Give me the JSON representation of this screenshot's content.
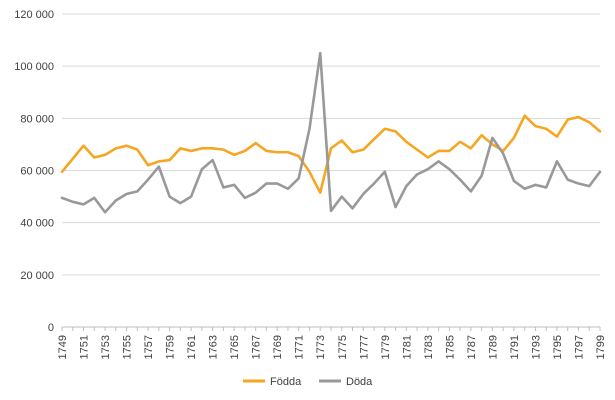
{
  "chart_data": {
    "type": "line",
    "title": "",
    "xlabel": "",
    "ylabel": "",
    "ylim": [
      0,
      120000
    ],
    "yticks": [
      0,
      20000,
      40000,
      60000,
      80000,
      100000,
      120000
    ],
    "ytick_labels": [
      "0",
      "20 000",
      "40 000",
      "60 000",
      "80 000",
      "100 000",
      "120 000"
    ],
    "grid": "horizontal",
    "legend_position": "bottom",
    "x": [
      1749,
      1750,
      1751,
      1752,
      1753,
      1754,
      1755,
      1756,
      1757,
      1758,
      1759,
      1760,
      1761,
      1762,
      1763,
      1764,
      1765,
      1766,
      1767,
      1768,
      1769,
      1770,
      1771,
      1772,
      1773,
      1774,
      1775,
      1776,
      1777,
      1778,
      1779,
      1780,
      1781,
      1782,
      1783,
      1784,
      1785,
      1786,
      1787,
      1788,
      1789,
      1790,
      1791,
      1792,
      1793,
      1794,
      1795,
      1796,
      1797,
      1798,
      1799
    ],
    "xtick_labels": [
      "1749",
      "1751",
      "1753",
      "1755",
      "1757",
      "1759",
      "1761",
      "1763",
      "1765",
      "1767",
      "1769",
      "1771",
      "1773",
      "1775",
      "1777",
      "1779",
      "1781",
      "1783",
      "1785",
      "1787",
      "1789",
      "1791",
      "1793",
      "1795",
      "1797",
      "1799"
    ],
    "series": [
      {
        "name": "Födda",
        "color": "#F5A623",
        "values": [
          59500,
          64500,
          69500,
          65000,
          66000,
          68500,
          69500,
          68000,
          62000,
          63500,
          64000,
          68500,
          67500,
          68500,
          68500,
          68000,
          66000,
          67500,
          70500,
          67500,
          67000,
          67000,
          65500,
          59500,
          51500,
          68500,
          71500,
          67000,
          68000,
          72000,
          76000,
          75000,
          71000,
          68000,
          65000,
          67500,
          67500,
          71000,
          68500,
          73500,
          70000,
          67500,
          72500,
          81000,
          77000,
          76000,
          73000,
          79500,
          80500,
          78500,
          75000
        ]
      },
      {
        "name": "Döda",
        "color": "#999999",
        "values": [
          49500,
          48000,
          47000,
          49500,
          44000,
          48500,
          51000,
          52000,
          56500,
          61500,
          50000,
          47500,
          50000,
          60500,
          64000,
          53500,
          54500,
          49500,
          51500,
          55000,
          55000,
          53000,
          57000,
          76000,
          105000,
          44500,
          50000,
          45500,
          51000,
          55000,
          59500,
          46000,
          54000,
          58500,
          60500,
          63500,
          60500,
          56500,
          52000,
          58000,
          72500,
          66500,
          56000,
          53000,
          54500,
          53500,
          63500,
          56500,
          55000,
          54000,
          59500
        ]
      }
    ]
  }
}
